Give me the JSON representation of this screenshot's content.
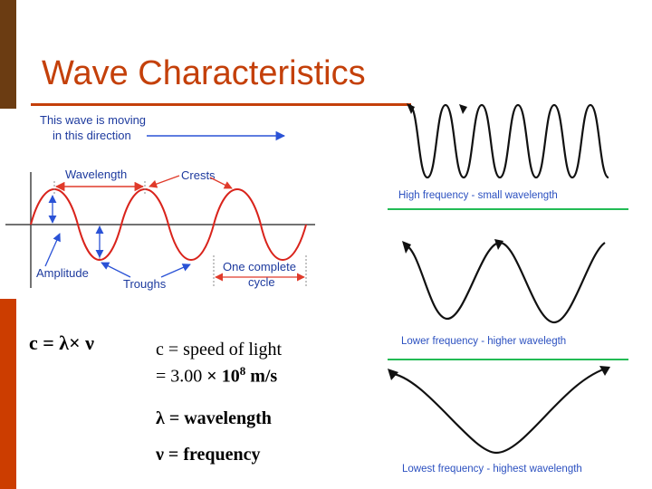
{
  "slide": {
    "title": "Wave Characteristics"
  },
  "diagram": {
    "direction_text_1": "This wave is moving",
    "direction_text_2": "in this direction",
    "wavelength_label": "Wavelength",
    "crests_label": "Crests",
    "amplitude_label": "Amplitude",
    "troughs_label": "Troughs",
    "cycle_label_1": "One complete",
    "cycle_label_2": "cycle"
  },
  "frequency_panels": {
    "high": "High frequency - small wavelength",
    "lower": "Lower frequency - higher wavelegth",
    "lowest": "Lowest frequency - highest wavelength"
  },
  "equation": {
    "formula": "c = λ× ν",
    "c_def": "c = speed of light",
    "c_value_prefix": "= 3.00 ",
    "c_value_times": "×",
    "c_value_base": " 10",
    "c_value_exp": "8",
    "c_value_unit": " m/s",
    "lambda_def": "λ = wavelength",
    "nu_def": "ν = frequency"
  },
  "colors": {
    "title": "#c4400a",
    "sidebar_top": "#6b3c12",
    "sidebar_bottom": "#cc3d00",
    "diagram_wave": "#d9231b",
    "diagram_label": "#1d3a9e",
    "diagram_arrow": "#2a52d6",
    "panel_label": "#2b50c0",
    "panel_divider": "#22bb55"
  }
}
